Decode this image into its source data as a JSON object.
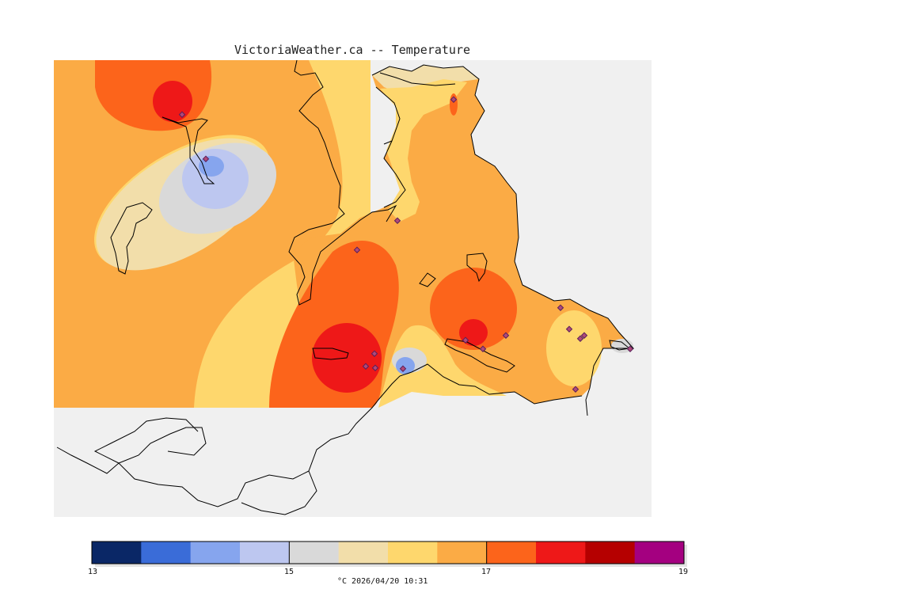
{
  "title": "VictoriaWeather.ca -- Temperature",
  "colorbar": {
    "min": 13,
    "max": 19,
    "tick_values": [
      13,
      15,
      17,
      19
    ],
    "tick_labels": [
      "13",
      "15",
      "17",
      "19"
    ],
    "colors": [
      "#0a2766",
      "#3a6cd8",
      "#86a5ee",
      "#bdc7f0",
      "#d9d9d9",
      "#f2deaa",
      "#fed76d",
      "#fbab45",
      "#fc641b",
      "#ee1818",
      "#b50000",
      "#a40080"
    ],
    "caption": "°C  2026/04/20 10:31"
  },
  "colors": {
    "background": "#f0f0f0",
    "coast": "#000000",
    "station": "#7a3a7a"
  }
}
